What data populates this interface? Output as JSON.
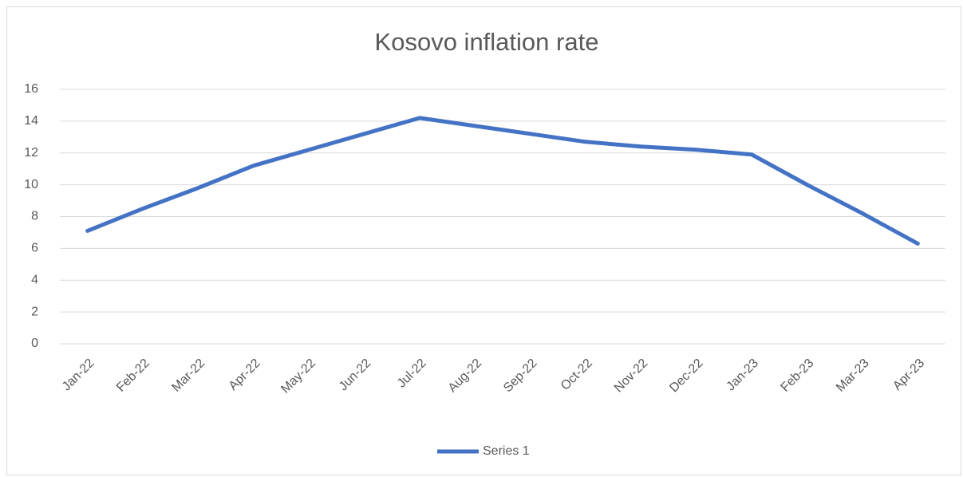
{
  "chart_data": {
    "type": "line",
    "title": "Kosovo inflation rate",
    "categories": [
      "Jan-22",
      "Feb-22",
      "Mar-22",
      "Apr-22",
      "May-22",
      "Jun-22",
      "Jul-22",
      "Aug-22",
      "Sep-22",
      "Oct-22",
      "Nov-22",
      "Dec-22",
      "Jan-23",
      "Feb-23",
      "Mar-23",
      "Apr-23"
    ],
    "series": [
      {
        "name": "Series 1",
        "color": "#4472c4",
        "values": [
          7.1,
          8.5,
          9.8,
          11.2,
          12.2,
          13.2,
          14.2,
          13.7,
          13.2,
          12.7,
          12.4,
          12.2,
          11.9,
          10.0,
          8.2,
          6.3
        ]
      }
    ],
    "ylim": [
      0,
      16
    ],
    "yticks": [
      0,
      2,
      4,
      6,
      8,
      10,
      12,
      14,
      16
    ],
    "grid": true,
    "legend": "bottom"
  }
}
